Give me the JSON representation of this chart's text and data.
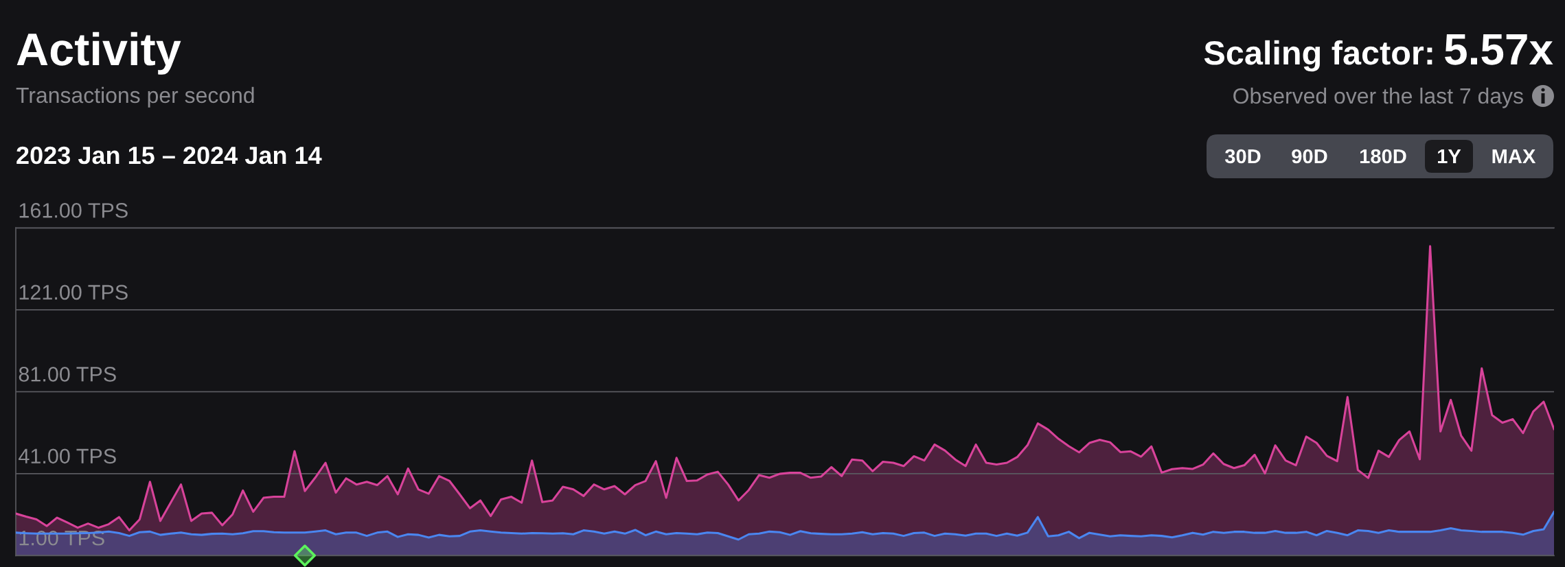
{
  "chart_data": {
    "type": "area",
    "title": "Activity",
    "subtitle": "Transactions per second",
    "annotations": [
      "2023 Jan 15 – 2024 Jan 14",
      "Scaling factor:",
      "5.57x",
      "Observed over the last 7 days",
      "30D",
      "90D",
      "180D",
      "1Y",
      "MAX"
    ],
    "categories": [
      null,
      null,
      null,
      null,
      null,
      null,
      null,
      null,
      null,
      null,
      null,
      null,
      null,
      null,
      null,
      null,
      null,
      null,
      null,
      null,
      null,
      null,
      null,
      null,
      null,
      null,
      null,
      null,
      null,
      null,
      null,
      null,
      null,
      null,
      null,
      null,
      null,
      null,
      null,
      null,
      null,
      null,
      null,
      null,
      null,
      null,
      null,
      null,
      null,
      null,
      null,
      null,
      null,
      null,
      null,
      null,
      null,
      null,
      null,
      null,
      null,
      null,
      null,
      null,
      null,
      null,
      null,
      null,
      null,
      null,
      null,
      null,
      null,
      null,
      null,
      null,
      null,
      null,
      null,
      null,
      null,
      null,
      null,
      null,
      null,
      null,
      null,
      null,
      null,
      null,
      null,
      null,
      null,
      null,
      null,
      null,
      null,
      null,
      null,
      null,
      null,
      null,
      null,
      null,
      null,
      null,
      null,
      null,
      null,
      null,
      null,
      null,
      null,
      null,
      null,
      null,
      null,
      null,
      null,
      null,
      null,
      null,
      null,
      null,
      null,
      null,
      null,
      null,
      null,
      null,
      null,
      null,
      null,
      null,
      null,
      null,
      null,
      null,
      null,
      null,
      null,
      null,
      null,
      null,
      null,
      null,
      null,
      null,
      null,
      null
    ],
    "series": [
      {
        "color": "#d8439a",
        "values": [
          21.5,
          20.0,
          18.7,
          15.4,
          19.5,
          17.1,
          14.6,
          16.6,
          14.6,
          16.3,
          19.8,
          13.3,
          18.7,
          37.0,
          17.9,
          26.8,
          35.7,
          17.9,
          21.5,
          21.9,
          15.8,
          21.1,
          32.8,
          22.4,
          29.2,
          29.7,
          29.7,
          52.0,
          32.5,
          39.0,
          46.3,
          31.7,
          38.7,
          35.7,
          37.0,
          35.4,
          39.8,
          30.9,
          43.5,
          33.3,
          31.2,
          39.8,
          37.5,
          30.9,
          24.1,
          27.9,
          20.3,
          28.4,
          29.7,
          26.8,
          47.4,
          27.1,
          27.9,
          34.6,
          33.3,
          30.1,
          35.7,
          33.3,
          34.9,
          30.9,
          35.4,
          37.4,
          47.1,
          29.2,
          48.7,
          37.4,
          37.7,
          40.6,
          41.9,
          35.7,
          27.9,
          33.0,
          40.3,
          39.0,
          40.9,
          41.4,
          41.4,
          39.0,
          39.6,
          44.2,
          39.8,
          47.9,
          47.4,
          42.2,
          46.8,
          46.3,
          44.7,
          49.5,
          47.4,
          55.2,
          52.3,
          47.9,
          44.7,
          55.2,
          46.3,
          45.5,
          46.3,
          49.1,
          54.9,
          65.5,
          62.5,
          58.0,
          54.4,
          51.4,
          56.0,
          57.5,
          56.3,
          51.5,
          51.9,
          49.3,
          54.3,
          41.5,
          43.2,
          43.7,
          43.3,
          45.4,
          50.9,
          45.7,
          43.7,
          45.1,
          50.2,
          41.1,
          54.8,
          47.4,
          45.1,
          59.1,
          56.0,
          49.7,
          47.1,
          78.4,
          42.8,
          38.9,
          52.2,
          49.2,
          57.4,
          61.6,
          48.0,
          152.1,
          61.6,
          77.0,
          59.6,
          52.2,
          92.4,
          69.6,
          65.9,
          67.6,
          60.8,
          71.4,
          76.1,
          62.8
        ]
      },
      {
        "color": "#4a86f0",
        "values": [
          12.2,
          11.9,
          11.7,
          11.7,
          11.7,
          11.7,
          11.9,
          12.0,
          12.2,
          12.7,
          12.0,
          10.6,
          12.4,
          12.7,
          11.1,
          11.7,
          12.2,
          11.4,
          11.1,
          11.6,
          11.7,
          11.4,
          11.9,
          12.9,
          12.9,
          12.4,
          12.2,
          12.2,
          12.2,
          12.7,
          13.3,
          11.4,
          12.2,
          12.2,
          10.6,
          12.2,
          12.7,
          10.1,
          11.4,
          11.1,
          9.8,
          11.1,
          10.4,
          10.6,
          12.7,
          13.3,
          12.7,
          12.2,
          12.0,
          11.7,
          12.0,
          11.9,
          11.7,
          11.9,
          11.4,
          13.3,
          12.7,
          11.7,
          12.7,
          11.7,
          13.5,
          10.9,
          12.7,
          11.4,
          12.0,
          11.7,
          11.4,
          12.2,
          12.0,
          10.4,
          8.8,
          11.4,
          11.7,
          12.7,
          12.4,
          11.1,
          12.9,
          11.9,
          11.6,
          11.4,
          11.4,
          11.7,
          12.4,
          11.4,
          12.0,
          11.7,
          10.6,
          12.0,
          12.2,
          10.6,
          11.7,
          11.4,
          10.7,
          11.7,
          11.7,
          10.6,
          11.7,
          10.7,
          12.2,
          19.8,
          10.4,
          10.9,
          12.6,
          9.5,
          12.1,
          11.2,
          10.4,
          10.9,
          10.6,
          10.4,
          10.9,
          10.6,
          9.9,
          10.9,
          12.1,
          11.2,
          12.6,
          12.1,
          12.6,
          12.6,
          12.1,
          12.1,
          13.0,
          12.1,
          12.1,
          12.6,
          10.9,
          13.0,
          12.1,
          10.9,
          13.3,
          13.0,
          12.1,
          13.3,
          12.6,
          12.6,
          12.6,
          12.6,
          13.3,
          14.3,
          13.3,
          13.0,
          12.6,
          12.6,
          12.6,
          12.1,
          11.2,
          13.0,
          13.8,
          22.3
        ]
      },
      {
        "type": "scatter",
        "color": "#5cf25c",
        "marker": "diamond",
        "values": [
          null,
          null,
          null,
          null,
          null,
          null,
          null,
          null,
          null,
          null,
          null,
          null,
          null,
          null,
          null,
          null,
          null,
          null,
          null,
          null,
          null,
          null,
          null,
          null,
          null,
          null,
          null,
          null,
          1,
          null,
          null,
          null,
          null,
          null,
          null,
          null,
          null,
          null,
          null,
          null,
          null,
          null,
          null,
          null,
          null,
          null,
          null,
          null,
          null,
          null,
          null,
          null,
          null,
          null,
          null,
          null,
          null,
          null,
          null,
          null,
          null,
          null,
          null,
          null,
          null,
          null,
          null,
          null,
          null,
          null,
          null,
          null,
          null,
          null,
          null,
          null,
          null,
          null,
          null,
          null,
          null,
          null,
          null,
          null,
          null,
          null,
          null,
          null,
          null,
          null,
          null,
          null,
          null,
          null,
          null,
          null,
          null,
          null,
          null,
          null,
          null,
          null,
          null,
          null,
          null,
          null,
          null,
          null,
          null,
          null,
          null,
          null,
          null,
          null,
          null,
          null,
          null,
          null,
          null,
          null,
          null,
          null,
          null,
          null,
          null,
          null,
          null,
          null,
          null,
          null,
          null,
          null,
          null,
          null,
          null,
          null,
          null,
          null,
          null,
          null,
          null,
          null,
          null,
          null,
          null,
          null,
          null,
          null,
          null,
          null
        ]
      }
    ],
    "ylim": [
      1,
      161
    ],
    "yticks": [
      {
        "value": 1,
        "label": "1.00 TPS"
      },
      {
        "value": 41,
        "label": "41.00 TPS"
      },
      {
        "value": 81,
        "label": "81.00 TPS"
      },
      {
        "value": 121,
        "label": "121.00 TPS"
      },
      {
        "value": 161,
        "label": "161.00 TPS"
      }
    ],
    "grid": "y",
    "tick_labels": "y",
    "line_style": "solid"
  }
}
